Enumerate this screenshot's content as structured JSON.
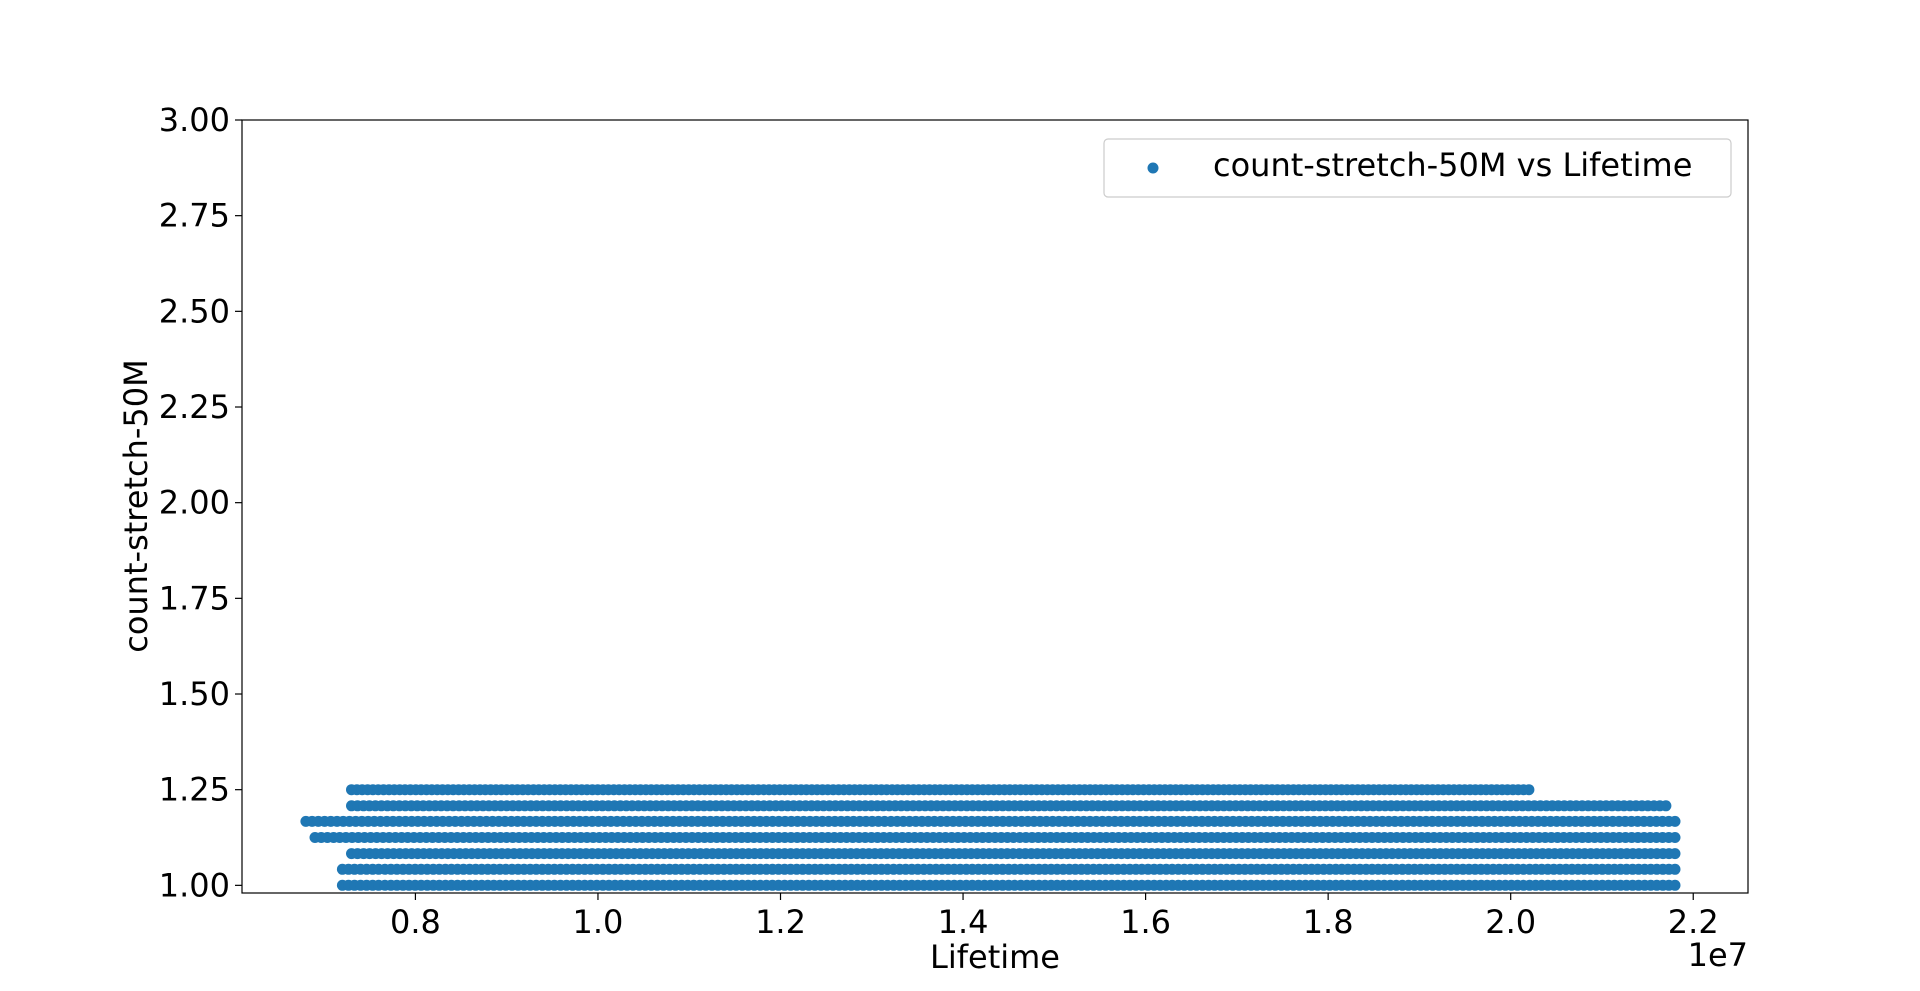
{
  "chart_data": {
    "type": "scatter",
    "xlabel": "Lifetime",
    "ylabel": "count-stretch-50M",
    "x_offset_label": "1e7",
    "xlim": [
      6100000,
      22600000
    ],
    "ylim": [
      0.98,
      3.0
    ],
    "x_ticks": [
      8000000,
      10000000,
      12000000,
      14000000,
      16000000,
      18000000,
      20000000,
      22000000
    ],
    "x_tick_labels": [
      "0.8",
      "1.0",
      "1.2",
      "1.4",
      "1.6",
      "1.8",
      "2.0",
      "2.2"
    ],
    "y_ticks": [
      1.0,
      1.25,
      1.5,
      1.75,
      2.0,
      2.25,
      2.5,
      2.75,
      3.0
    ],
    "y_tick_labels": [
      "1.00",
      "1.25",
      "1.50",
      "1.75",
      "2.00",
      "2.25",
      "2.50",
      "2.75",
      "3.00"
    ],
    "grid": false,
    "legend_position": "top-right",
    "color": "#1f77b4",
    "series": [
      {
        "name": "count-stretch-50M vs Lifetime",
        "bands": [
          {
            "y": 1.0,
            "x_min": 7200000,
            "x_max": 21800000
          },
          {
            "y": 1.042,
            "x_min": 7200000,
            "x_max": 21800000
          },
          {
            "y": 1.083,
            "x_min": 7300000,
            "x_max": 21800000
          },
          {
            "y": 1.125,
            "x_min": 6900000,
            "x_max": 21800000
          },
          {
            "y": 1.167,
            "x_min": 6800000,
            "x_max": 21800000
          },
          {
            "y": 1.208,
            "x_min": 7300000,
            "x_max": 21700000
          },
          {
            "y": 1.25,
            "x_min": 7300000,
            "x_max": 20200000
          }
        ]
      }
    ]
  }
}
